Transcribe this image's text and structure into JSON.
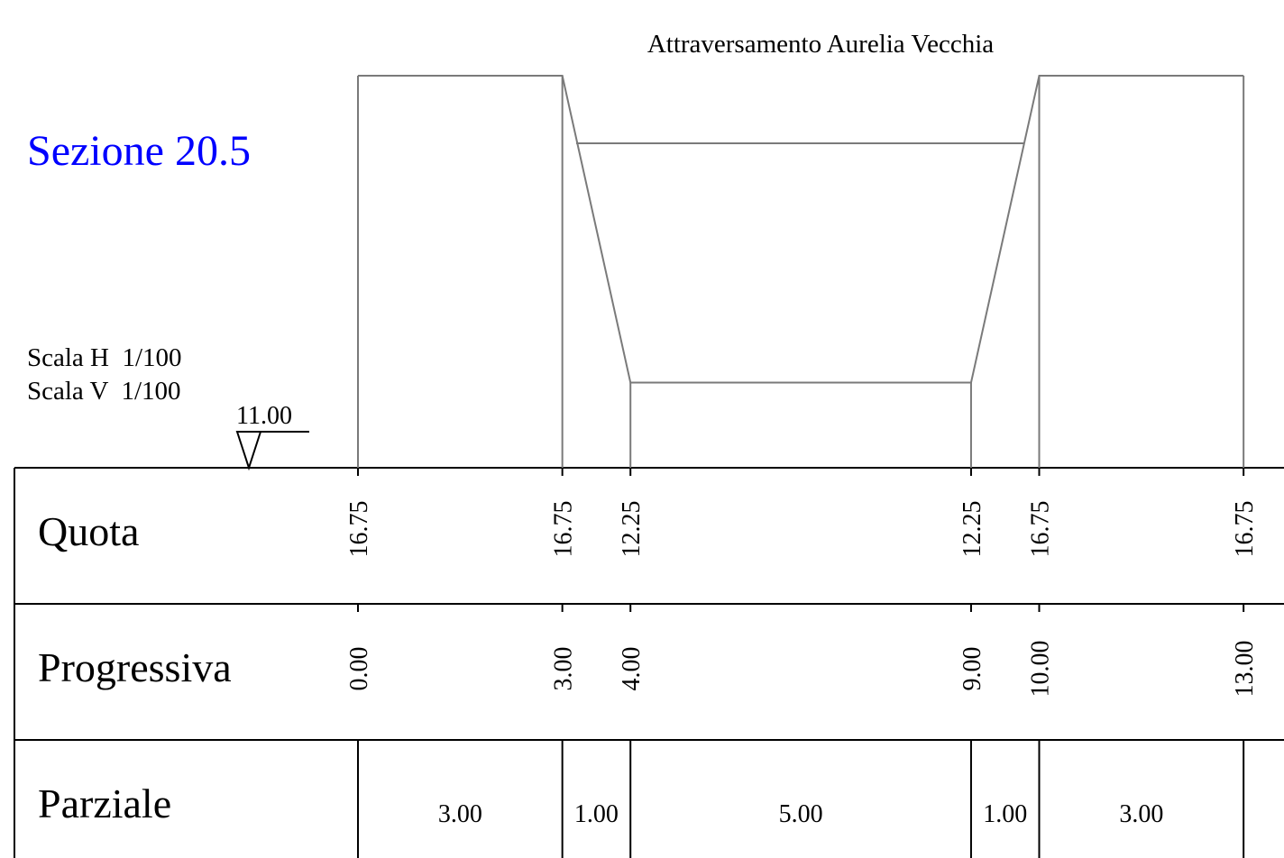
{
  "title": "Sezione 20.5",
  "subtitle": "Attraversamento Aurelia Vecchia",
  "scales": [
    "Scala H  1/100",
    "Scala V  1/100"
  ],
  "datum": "11.00",
  "rows": {
    "quota": {
      "label": "Quota",
      "values": [
        "16.75",
        "16.75",
        "12.25",
        "12.25",
        "16.75",
        "16.75"
      ]
    },
    "progressiva": {
      "label": "Progressiva",
      "values": [
        "0.00",
        "3.00",
        "4.00",
        "9.00",
        "10.00",
        "13.00"
      ]
    },
    "parziale": {
      "label": "Parziale",
      "values": [
        "3.00",
        "1.00",
        "5.00",
        "1.00",
        "3.00"
      ]
    }
  }
}
